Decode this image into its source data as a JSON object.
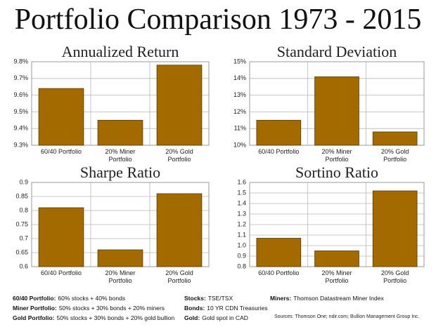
{
  "title": "Portfolio Comparison 1973 - 2015",
  "chart_data": [
    {
      "type": "bar",
      "title": "Annualized Return",
      "categories": [
        "60/40 Portfolio",
        "20% Miner Portfolio",
        "20% Gold Portfolio"
      ],
      "values": [
        9.64,
        9.45,
        9.78
      ],
      "color": "#a36a00",
      "ylim": [
        9.3,
        9.8
      ],
      "yticks": [
        {
          "value": 9.3,
          "label": "9.3%"
        },
        {
          "value": 9.4,
          "label": "9.4%"
        },
        {
          "value": 9.5,
          "label": "9.5%"
        },
        {
          "value": 9.6,
          "label": "9.6%"
        },
        {
          "value": 9.7,
          "label": "9.7%"
        },
        {
          "value": 9.8,
          "label": "9.8%"
        }
      ],
      "grid": true
    },
    {
      "type": "bar",
      "title": "Standard Deviation",
      "categories": [
        "60/40 Portfolio",
        "20% Miner Portfolio",
        "20% Gold Portfolio"
      ],
      "values": [
        11.5,
        14.1,
        10.8
      ],
      "color": "#a36a00",
      "ylim": [
        10,
        15
      ],
      "yticks": [
        {
          "value": 10,
          "label": "10%"
        },
        {
          "value": 11,
          "label": "11%"
        },
        {
          "value": 12,
          "label": "12%"
        },
        {
          "value": 13,
          "label": "13%"
        },
        {
          "value": 14,
          "label": "14%"
        },
        {
          "value": 15,
          "label": "15%"
        }
      ],
      "grid": true
    },
    {
      "type": "bar",
      "title": "Sharpe Ratio",
      "categories": [
        "60/40 Portfolio",
        "20% Miner Portfolio",
        "20% Gold Portfolio"
      ],
      "values": [
        0.81,
        0.66,
        0.86
      ],
      "color": "#a36a00",
      "ylim": [
        0.6,
        0.9
      ],
      "yticks": [
        0.6,
        0.65,
        0.7,
        0.75,
        0.8,
        0.85,
        0.9
      ],
      "grid": true
    },
    {
      "type": "bar",
      "title": "Sortino Ratio",
      "categories": [
        "60/40 Portfolio",
        "20% Miner Portfolio",
        "20% Gold Portfolio"
      ],
      "values": [
        1.07,
        0.95,
        1.52
      ],
      "color": "#a36a00",
      "ylim": [
        0.8,
        1.6
      ],
      "yticks": [
        {
          "value": 0.8,
          "label": "0.8"
        },
        {
          "value": 0.9,
          "label": "0.9"
        },
        {
          "value": 1.0,
          "label": "1.0"
        },
        {
          "value": 1.1,
          "label": "1.1"
        },
        {
          "value": 1.2,
          "label": "1.2"
        },
        {
          "value": 1.3,
          "label": "1.3"
        },
        {
          "value": 1.4,
          "label": "1.4"
        },
        {
          "value": 1.5,
          "label": "1.5"
        },
        {
          "value": 1.6,
          "label": "1.6"
        }
      ],
      "grid": true
    }
  ],
  "notes": [
    {
      "label": "60/40 Portfolio:",
      "text": "60% stocks + 40% bonds"
    },
    {
      "label": "Miner Portfolio:",
      "text": "50% stocks + 30% bonds + 20% miners"
    },
    {
      "label": "Gold Portfolio:",
      "text": "50% stocks + 30% bonds + 20% gold bullion"
    },
    {
      "label": "Stocks:",
      "text": "TSE/TSX"
    },
    {
      "label": "Bonds:",
      "text": "10 YR CDN Treasuries"
    },
    {
      "label": "Gold:",
      "text": "Gold spot in CAD"
    },
    {
      "label": "Miners:",
      "text": "Thomson Datastream Miner Index"
    }
  ],
  "sources": "Sources: Thomson One; ndir.com; Bullion Management Group Inc."
}
